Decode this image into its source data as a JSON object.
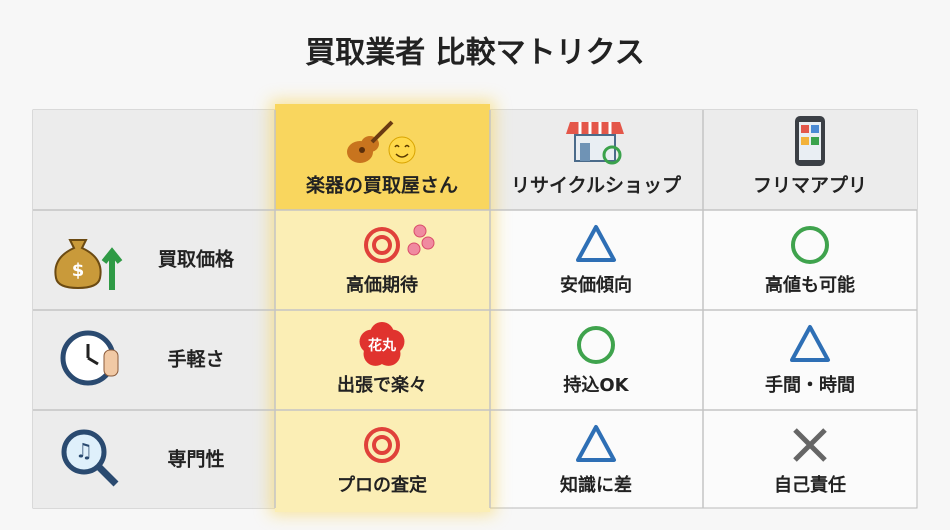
{
  "header": {
    "title": "買取業者 比較マトリクス"
  },
  "table": {
    "columns": [
      "楽器の買取屋さん",
      "リサイクルショップ",
      "フリマアプリ"
    ],
    "highlight_column": 0,
    "rows": [
      {
        "label": "買取価格",
        "cells": [
          {
            "mark": "double-circle",
            "decoration": "sakura",
            "text": "高価期待"
          },
          {
            "mark": "triangle",
            "text": "安価傾向"
          },
          {
            "mark": "circle",
            "text": "高値も可能"
          }
        ]
      },
      {
        "label": "手軽さ",
        "cells": [
          {
            "badge": "花丸",
            "text": "出張で楽々"
          },
          {
            "mark": "circle",
            "text": "持込OK"
          },
          {
            "mark": "triangle",
            "text": "手間・時間"
          }
        ]
      },
      {
        "label": "専門性",
        "cells": [
          {
            "mark": "double-circle",
            "text": "プロの査定"
          },
          {
            "mark": "triangle",
            "text": "知識に差"
          },
          {
            "mark": "cross",
            "text": "自己責任"
          }
        ]
      }
    ]
  }
}
